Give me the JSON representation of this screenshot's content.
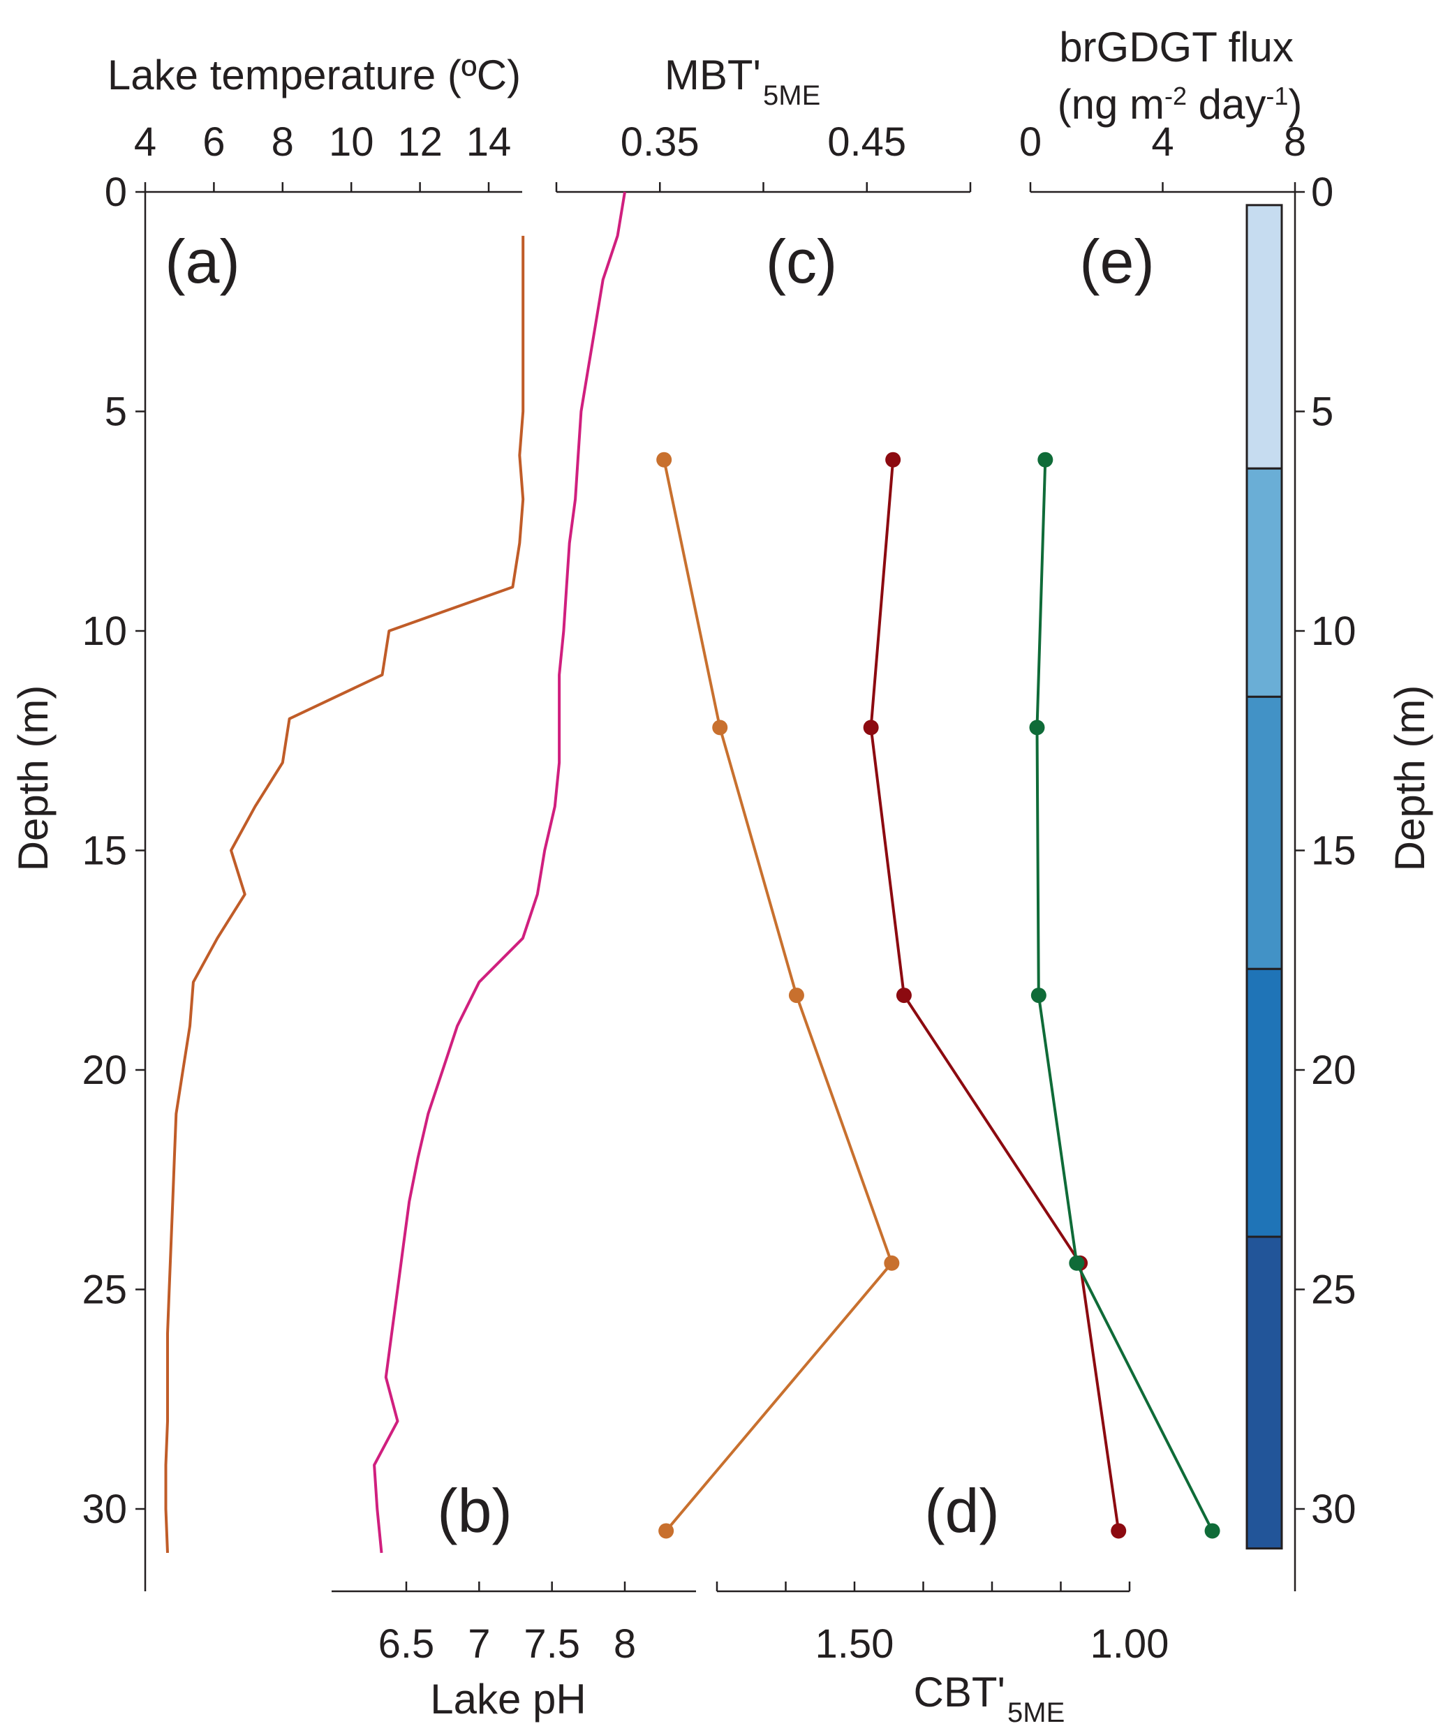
{
  "chart_data": {
    "type": "line",
    "depth_axis": {
      "label": "Depth (m)",
      "ticks": [
        0,
        5,
        10,
        15,
        20,
        25,
        30
      ],
      "ylim": [
        0,
        32
      ],
      "inverted": true
    },
    "panels": [
      {
        "id": "a",
        "label": "(a)",
        "series_name": "",
        "xlabel": "Lake temperature (ºC)",
        "axis_position": "top",
        "xticks": [
          4,
          6,
          8,
          10,
          12,
          14
        ],
        "xlim": [
          4,
          15.2
        ],
        "color": "#c05c28",
        "markers": false,
        "points": [
          {
            "x": 15.0,
            "depth": 1
          },
          {
            "x": 15.0,
            "depth": 2
          },
          {
            "x": 15.0,
            "depth": 3
          },
          {
            "x": 15.0,
            "depth": 4
          },
          {
            "x": 15.0,
            "depth": 5
          },
          {
            "x": 14.9,
            "depth": 6
          },
          {
            "x": 15.0,
            "depth": 7
          },
          {
            "x": 14.9,
            "depth": 8
          },
          {
            "x": 14.7,
            "depth": 9
          },
          {
            "x": 11.1,
            "depth": 10
          },
          {
            "x": 10.9,
            "depth": 11
          },
          {
            "x": 8.2,
            "depth": 12
          },
          {
            "x": 8.0,
            "depth": 13
          },
          {
            "x": 7.2,
            "depth": 14
          },
          {
            "x": 6.5,
            "depth": 15
          },
          {
            "x": 6.9,
            "depth": 16
          },
          {
            "x": 6.1,
            "depth": 17
          },
          {
            "x": 5.4,
            "depth": 18
          },
          {
            "x": 5.3,
            "depth": 19
          },
          {
            "x": 5.1,
            "depth": 20
          },
          {
            "x": 4.9,
            "depth": 21
          },
          {
            "x": 4.85,
            "depth": 22
          },
          {
            "x": 4.8,
            "depth": 23
          },
          {
            "x": 4.75,
            "depth": 24
          },
          {
            "x": 4.7,
            "depth": 25
          },
          {
            "x": 4.65,
            "depth": 26
          },
          {
            "x": 4.65,
            "depth": 27
          },
          {
            "x": 4.65,
            "depth": 28
          },
          {
            "x": 4.6,
            "depth": 29
          },
          {
            "x": 4.6,
            "depth": 30
          },
          {
            "x": 4.65,
            "depth": 31
          }
        ]
      },
      {
        "id": "b",
        "label": "(b)",
        "series_name": "",
        "xlabel": "Lake pH",
        "axis_position": "bottom",
        "xticks": [
          6.5,
          7,
          7.5,
          8
        ],
        "xlim": [
          6.0,
          8.5
        ],
        "color": "#d01f7e",
        "markers": false,
        "points": [
          {
            "x": 8.0,
            "depth": 0
          },
          {
            "x": 7.95,
            "depth": 1
          },
          {
            "x": 7.85,
            "depth": 2
          },
          {
            "x": 7.8,
            "depth": 3
          },
          {
            "x": 7.75,
            "depth": 4
          },
          {
            "x": 7.7,
            "depth": 5
          },
          {
            "x": 7.68,
            "depth": 6
          },
          {
            "x": 7.66,
            "depth": 7
          },
          {
            "x": 7.62,
            "depth": 8
          },
          {
            "x": 7.6,
            "depth": 9
          },
          {
            "x": 7.58,
            "depth": 10
          },
          {
            "x": 7.55,
            "depth": 11
          },
          {
            "x": 7.55,
            "depth": 12
          },
          {
            "x": 7.55,
            "depth": 13
          },
          {
            "x": 7.52,
            "depth": 14
          },
          {
            "x": 7.45,
            "depth": 15
          },
          {
            "x": 7.4,
            "depth": 16
          },
          {
            "x": 7.3,
            "depth": 17
          },
          {
            "x": 7.0,
            "depth": 18
          },
          {
            "x": 6.85,
            "depth": 19
          },
          {
            "x": 6.75,
            "depth": 20
          },
          {
            "x": 6.65,
            "depth": 21
          },
          {
            "x": 6.58,
            "depth": 22
          },
          {
            "x": 6.52,
            "depth": 23
          },
          {
            "x": 6.48,
            "depth": 24
          },
          {
            "x": 6.44,
            "depth": 25
          },
          {
            "x": 6.4,
            "depth": 26
          },
          {
            "x": 6.36,
            "depth": 27
          },
          {
            "x": 6.44,
            "depth": 28
          },
          {
            "x": 6.28,
            "depth": 29
          },
          {
            "x": 6.3,
            "depth": 30
          },
          {
            "x": 6.33,
            "depth": 31
          }
        ]
      },
      {
        "id": "c",
        "label": "(c)",
        "series_name": "",
        "xlabel_main": "MBT'",
        "xlabel_sub": "5ME",
        "axis_position": "top",
        "xticks": [
          0.3,
          0.35,
          0.4,
          0.45,
          0.5
        ],
        "xtick_labels_shown": [
          0.35,
          0.45
        ],
        "xlim": [
          0.3,
          0.5
        ],
        "color": "#c8702e",
        "markers": true,
        "points": [
          {
            "x": 0.352,
            "depth": 6.1
          },
          {
            "x": 0.379,
            "depth": 12.2
          },
          {
            "x": 0.416,
            "depth": 18.3
          },
          {
            "x": 0.462,
            "depth": 24.4
          },
          {
            "x": 0.353,
            "depth": 30.5
          }
        ]
      },
      {
        "id": "d",
        "label": "(d)",
        "series_name": "",
        "xlabel_main": "CBT'",
        "xlabel_sub": "5ME",
        "axis_position": "bottom",
        "axis_reversed": true,
        "xticks": [
          1.75,
          1.625,
          1.5,
          1.375,
          1.25,
          1.125,
          1.0
        ],
        "xtick_labels_shown": [
          1.5,
          1.0
        ],
        "xlim": [
          1.75,
          1.0
        ],
        "color": "#8c0a10",
        "markers": true,
        "points": [
          {
            "x": 1.43,
            "depth": 6.1
          },
          {
            "x": 1.47,
            "depth": 12.2
          },
          {
            "x": 1.41,
            "depth": 18.3
          },
          {
            "x": 1.09,
            "depth": 24.4
          },
          {
            "x": 1.02,
            "depth": 30.5
          }
        ]
      },
      {
        "id": "e",
        "label": "(e)",
        "series_name": "",
        "xlabel_line1": "brGDGT flux",
        "xlabel_line2": "(ng m",
        "xlabel_sup1": "-2",
        "xlabel_mid": " day",
        "xlabel_sup2": "-1",
        "xlabel_end": ")",
        "axis_position": "top",
        "xticks": [
          0,
          4,
          8
        ],
        "xlim": [
          0,
          8
        ],
        "color": "#0f6b38",
        "markers": true,
        "points": [
          {
            "x": 0.45,
            "depth": 6.1
          },
          {
            "x": 0.2,
            "depth": 12.2
          },
          {
            "x": 0.25,
            "depth": 18.3
          },
          {
            "x": 1.4,
            "depth": 24.4
          },
          {
            "x": 5.5,
            "depth": 30.5
          }
        ]
      }
    ],
    "sediment_trap_bar": {
      "segments": [
        {
          "top": 0.3,
          "bottom": 6.3,
          "color": "#c6dcf0"
        },
        {
          "top": 6.3,
          "bottom": 11.5,
          "color": "#6aaed6"
        },
        {
          "top": 11.5,
          "bottom": 17.7,
          "color": "#4292c6"
        },
        {
          "top": 17.7,
          "bottom": 23.8,
          "color": "#1f74b7"
        },
        {
          "top": 23.8,
          "bottom": 30.9,
          "color": "#225599"
        }
      ]
    }
  }
}
